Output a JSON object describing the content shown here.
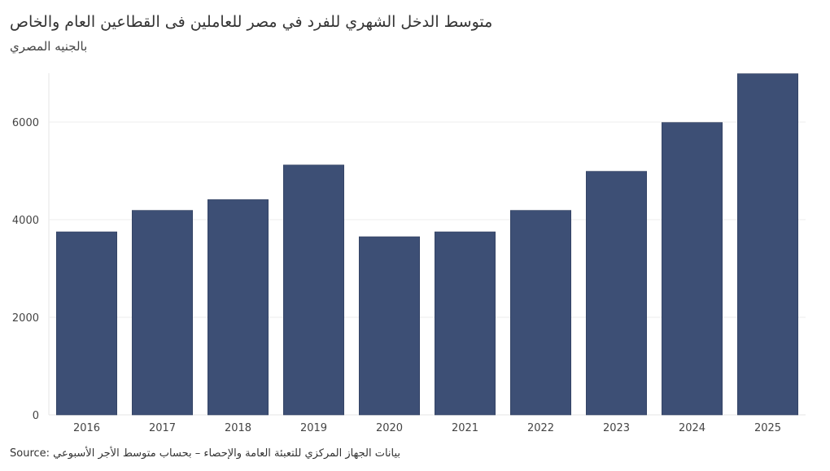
{
  "chart_data": {
    "type": "bar",
    "title": "متوسط الدخل الشهري للفرد في مصر للعاملين فى القطاعين العام والخاص",
    "subtitle": "بالجنيه المصري",
    "categories": [
      "2016",
      "2017",
      "2018",
      "2019",
      "2020",
      "2021",
      "2022",
      "2023",
      "2024",
      "2025"
    ],
    "values": [
      3750,
      4190,
      4410,
      5120,
      3650,
      3750,
      4190,
      4990,
      5990,
      6990
    ],
    "xlabel": "",
    "ylabel": "",
    "ylim": [
      0,
      7000
    ],
    "yticks": [
      0,
      2000,
      4000,
      6000
    ],
    "grid": true,
    "bar_color": "#3d4f75"
  },
  "source": {
    "prefix": "Source:",
    "text": "بيانات الجهاز المركزي للتعبئة العامة والإحصاء – بحساب متوسط الأجر الأسبوعي"
  }
}
